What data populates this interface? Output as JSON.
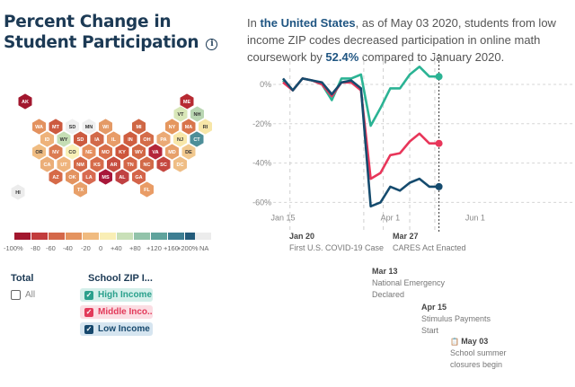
{
  "title": "Percent Change in Student Participation",
  "info_icon": "info-icon",
  "summary": {
    "prefix": "In ",
    "region": "the United States",
    "middle": ", as of May 03 2020, students from low income ZIP codes decreased participation in online math coursework by ",
    "value": "52.4%",
    "suffix": " compared to January 2020."
  },
  "hex_map": {
    "states": [
      {
        "abbr": "AK",
        "col": 0,
        "row": 0,
        "color": "#a2172e"
      },
      {
        "abbr": "ME",
        "col": 11,
        "row": 0,
        "color": "#b72a32"
      },
      {
        "abbr": "VT",
        "col": 10,
        "row": 1,
        "color": "#d9e7b8"
      },
      {
        "abbr": "NH",
        "col": 11,
        "row": 1,
        "color": "#b9d6b2"
      },
      {
        "abbr": "WA",
        "col": 1,
        "row": 2,
        "color": "#e3925f"
      },
      {
        "abbr": "MT",
        "col": 2,
        "row": 2,
        "color": "#cc5a3f"
      },
      {
        "abbr": "SD",
        "col": 3,
        "row": 2,
        "color": "#efefef"
      },
      {
        "abbr": "MN",
        "col": 4,
        "row": 2,
        "color": "#efefef"
      },
      {
        "abbr": "WI",
        "col": 5,
        "row": 2,
        "color": "#e49a66"
      },
      {
        "abbr": "MI",
        "col": 7,
        "row": 2,
        "color": "#cf6745"
      },
      {
        "abbr": "NY",
        "col": 9,
        "row": 2,
        "color": "#e5975e"
      },
      {
        "abbr": "MA",
        "col": 10,
        "row": 2,
        "color": "#d8744b"
      },
      {
        "abbr": "RI",
        "col": 11,
        "row": 2,
        "color": "#f7e6a8"
      },
      {
        "abbr": "ID",
        "col": 1,
        "row": 3,
        "color": "#eeb27a"
      },
      {
        "abbr": "WY",
        "col": 2,
        "row": 3,
        "color": "#c5deb4"
      },
      {
        "abbr": "SD",
        "col": 3,
        "row": 3,
        "color": "#cc5a3f"
      },
      {
        "abbr": "IA",
        "col": 4,
        "row": 3,
        "color": "#d26a4a"
      },
      {
        "abbr": "IL",
        "col": 5,
        "row": 3,
        "color": "#e89c68"
      },
      {
        "abbr": "IN",
        "col": 6,
        "row": 3,
        "color": "#cf5e40"
      },
      {
        "abbr": "OH",
        "col": 7,
        "row": 3,
        "color": "#d46c49"
      },
      {
        "abbr": "PA",
        "col": 8,
        "row": 3,
        "color": "#ebaa76"
      },
      {
        "abbr": "NJ",
        "col": 9,
        "row": 3,
        "color": "#f8e7a9"
      },
      {
        "abbr": "CT",
        "col": 10,
        "row": 3,
        "color": "#4d8e98"
      },
      {
        "abbr": "OR",
        "col": 1,
        "row": 4,
        "color": "#f0bd83"
      },
      {
        "abbr": "NV",
        "col": 2,
        "row": 4,
        "color": "#db7c52"
      },
      {
        "abbr": "CO",
        "col": 3,
        "row": 4,
        "color": "#f9f1b8"
      },
      {
        "abbr": "NE",
        "col": 4,
        "row": 4,
        "color": "#e58f5e"
      },
      {
        "abbr": "MO",
        "col": 5,
        "row": 4,
        "color": "#d86f4b"
      },
      {
        "abbr": "KY",
        "col": 6,
        "row": 4,
        "color": "#cd553c"
      },
      {
        "abbr": "WV",
        "col": 7,
        "row": 4,
        "color": "#d26745"
      },
      {
        "abbr": "VA",
        "col": 8,
        "row": 4,
        "color": "#b4263a"
      },
      {
        "abbr": "MD",
        "col": 9,
        "row": 4,
        "color": "#e7a06a"
      },
      {
        "abbr": "DE",
        "col": 10,
        "row": 4,
        "color": "#f1c88e"
      },
      {
        "abbr": "CA",
        "col": 1,
        "row": 5,
        "color": "#ebae78"
      },
      {
        "abbr": "UT",
        "col": 2,
        "row": 5,
        "color": "#efb47c"
      },
      {
        "abbr": "NM",
        "col": 3,
        "row": 5,
        "color": "#d46a49"
      },
      {
        "abbr": "KS",
        "col": 4,
        "row": 5,
        "color": "#d66c4b"
      },
      {
        "abbr": "AR",
        "col": 5,
        "row": 5,
        "color": "#c74d40"
      },
      {
        "abbr": "TN",
        "col": 6,
        "row": 5,
        "color": "#d46648"
      },
      {
        "abbr": "NC",
        "col": 7,
        "row": 5,
        "color": "#d26a48"
      },
      {
        "abbr": "SC",
        "col": 8,
        "row": 5,
        "color": "#c5473f"
      },
      {
        "abbr": "DC",
        "col": 9,
        "row": 5,
        "color": "#efbd85"
      },
      {
        "abbr": "AZ",
        "col": 2,
        "row": 6,
        "color": "#d66a48"
      },
      {
        "abbr": "OK",
        "col": 3,
        "row": 6,
        "color": "#e3935f"
      },
      {
        "abbr": "LA",
        "col": 4,
        "row": 6,
        "color": "#d86a50"
      },
      {
        "abbr": "MS",
        "col": 5,
        "row": 6,
        "color": "#a8173a"
      },
      {
        "abbr": "AL",
        "col": 6,
        "row": 6,
        "color": "#c04142"
      },
      {
        "abbr": "GA",
        "col": 7,
        "row": 6,
        "color": "#d46449"
      },
      {
        "abbr": "TX",
        "col": 3,
        "row": 7,
        "color": "#e8a06a"
      },
      {
        "abbr": "FL",
        "col": 7,
        "row": 7,
        "color": "#e99c66"
      },
      {
        "abbr": "HI",
        "col": 0,
        "row": 8,
        "color": "#ececec"
      }
    ]
  },
  "legend": {
    "colors": [
      "#a2172e",
      "#c23c3c",
      "#d4684a",
      "#e4935f",
      "#f0bb80",
      "#f9eeb5",
      "#c9e0b8",
      "#92c3aa",
      "#5fa39c",
      "#3d7e92",
      "#235b7a"
    ],
    "labels": [
      "-100%",
      "-80",
      "-60",
      "-40",
      "-20",
      "0",
      "+40",
      "+80",
      "+120",
      "+160",
      "+200%"
    ],
    "na_label": "NA"
  },
  "filters": {
    "total_heading": "Total",
    "total_option": "All",
    "zip_heading": "School ZIP I...",
    "options": [
      {
        "label": "High Income",
        "checked": true,
        "color": "#2aa08c",
        "bg": "#d4efea"
      },
      {
        "label": "Middle Inco...",
        "checked": true,
        "color": "#e23a5a",
        "bg": "#fbdde3"
      },
      {
        "label": "Low Income",
        "checked": true,
        "color": "#16486d",
        "bg": "#d6e5f0"
      }
    ]
  },
  "chart_data": {
    "type": "line",
    "xlabel": "",
    "ylabel": "",
    "ylim": [
      -65,
      10
    ],
    "yticks": [
      "0%",
      "-20%",
      "-40%",
      "-60%"
    ],
    "ytick_values": [
      0,
      -20,
      -40,
      -60
    ],
    "xticks": [
      "Jan 15",
      "Apr 1",
      "Jun 1"
    ],
    "xtick_days": [
      0,
      77,
      138
    ],
    "grid": true,
    "x_days": [
      0,
      7,
      14,
      21,
      28,
      35,
      42,
      49,
      56,
      63,
      70,
      77,
      84,
      91,
      98,
      105,
      112
    ],
    "series": [
      {
        "name": "High Income",
        "color": "#2bb394",
        "values": [
          2,
          -3,
          3,
          2,
          0,
          -8,
          3,
          3,
          5,
          -21,
          -12,
          -2,
          -2,
          5,
          9,
          4,
          4
        ]
      },
      {
        "name": "Middle Income",
        "color": "#e8365a",
        "values": [
          1,
          -3,
          3,
          2,
          0,
          -6,
          1,
          1,
          -3,
          -48,
          -45,
          -36,
          -35,
          -29,
          -25,
          -30,
          -30
        ]
      },
      {
        "name": "Low Income",
        "color": "#154b6e",
        "values": [
          3,
          -3,
          3,
          2,
          1,
          -5,
          1,
          2,
          -2,
          -62,
          -60,
          -52,
          -54,
          -50,
          -48,
          -52,
          -52
        ]
      }
    ],
    "end_labels": [
      4,
      -30,
      -52
    ],
    "annotations": [
      {
        "date": "Jan 20",
        "text": [
          "First U.S. COVID-19 Case"
        ]
      },
      {
        "date": "Mar 13",
        "text": [
          "National Emergency",
          "Declared"
        ]
      },
      {
        "date": "Mar 27",
        "text": [
          "CARES Act Enacted"
        ]
      },
      {
        "date": "Apr 15",
        "text": [
          "Stimulus Payments",
          "Start"
        ]
      },
      {
        "date": "May 03",
        "text": [
          "School summer",
          "closures begin"
        ],
        "icon": "clipboard-icon"
      }
    ]
  }
}
